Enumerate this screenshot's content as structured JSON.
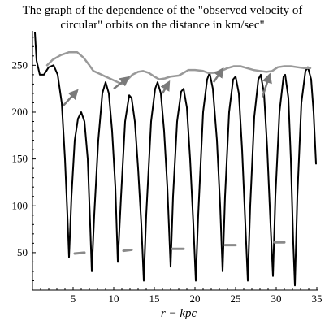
{
  "chart_data": {
    "type": "line",
    "title_lines": [
      "The graph of the dependence of the \"observed velocity of",
      "circular\" orbits on the distance in km/sec\""
    ],
    "xlabel": "r − kpc",
    "ylabel": "",
    "xlim": [
      0,
      36
    ],
    "ylim": [
      10,
      285
    ],
    "x_ticks": [
      5,
      10,
      15,
      20,
      25,
      30,
      35
    ],
    "y_ticks": [
      50,
      100,
      150,
      200,
      250
    ],
    "grid": false,
    "legend": "none",
    "series": [
      {
        "color": "#000000",
        "points": [
          [
            0.3,
            285
          ],
          [
            0.5,
            255
          ],
          [
            0.9,
            240
          ],
          [
            1.4,
            240
          ],
          [
            2.0,
            248
          ],
          [
            2.6,
            250
          ],
          [
            3.1,
            240
          ],
          [
            3.6,
            210
          ],
          [
            4.0,
            150
          ],
          [
            4.3,
            90
          ],
          [
            4.5,
            45
          ],
          [
            4.8,
            110
          ],
          [
            5.2,
            170
          ],
          [
            5.6,
            193
          ],
          [
            6.0,
            200
          ],
          [
            6.4,
            190
          ],
          [
            6.8,
            150
          ],
          [
            7.1,
            80
          ],
          [
            7.3,
            30
          ],
          [
            7.6,
            90
          ],
          [
            8.1,
            170
          ],
          [
            8.6,
            220
          ],
          [
            9.0,
            232
          ],
          [
            9.4,
            220
          ],
          [
            9.8,
            180
          ],
          [
            10.2,
            120
          ],
          [
            10.5,
            40
          ],
          [
            10.9,
            110
          ],
          [
            11.4,
            190
          ],
          [
            11.9,
            218
          ],
          [
            12.2,
            215
          ],
          [
            12.6,
            190
          ],
          [
            13.0,
            140
          ],
          [
            13.4,
            80
          ],
          [
            13.7,
            20
          ],
          [
            14.0,
            90
          ],
          [
            14.6,
            190
          ],
          [
            15.1,
            225
          ],
          [
            15.4,
            232
          ],
          [
            15.8,
            220
          ],
          [
            16.2,
            180
          ],
          [
            16.6,
            120
          ],
          [
            17.0,
            35
          ],
          [
            17.3,
            110
          ],
          [
            17.8,
            190
          ],
          [
            18.3,
            222
          ],
          [
            18.6,
            225
          ],
          [
            19.0,
            205
          ],
          [
            19.4,
            150
          ],
          [
            19.8,
            80
          ],
          [
            20.1,
            20
          ],
          [
            20.4,
            90
          ],
          [
            21.0,
            200
          ],
          [
            21.5,
            235
          ],
          [
            21.8,
            242
          ],
          [
            22.2,
            225
          ],
          [
            22.7,
            170
          ],
          [
            23.1,
            100
          ],
          [
            23.4,
            30
          ],
          [
            23.7,
            110
          ],
          [
            24.2,
            200
          ],
          [
            24.7,
            235
          ],
          [
            25.0,
            238
          ],
          [
            25.4,
            220
          ],
          [
            25.8,
            160
          ],
          [
            26.2,
            80
          ],
          [
            26.5,
            20
          ],
          [
            26.8,
            100
          ],
          [
            27.3,
            195
          ],
          [
            27.8,
            235
          ],
          [
            28.1,
            240
          ],
          [
            28.5,
            220
          ],
          [
            28.9,
            160
          ],
          [
            29.3,
            80
          ],
          [
            29.6,
            25
          ],
          [
            29.9,
            110
          ],
          [
            30.4,
            200
          ],
          [
            30.9,
            238
          ],
          [
            31.1,
            240
          ],
          [
            31.5,
            215
          ],
          [
            31.8,
            150
          ],
          [
            32.1,
            60
          ],
          [
            32.3,
            15
          ],
          [
            32.6,
            110
          ],
          [
            33.1,
            210
          ],
          [
            33.6,
            244
          ],
          [
            33.9,
            248
          ],
          [
            34.3,
            235
          ],
          [
            34.6,
            200
          ],
          [
            34.9,
            145
          ]
        ]
      },
      {
        "color": "#999999",
        "points": [
          [
            1.8,
            250
          ],
          [
            2.5,
            256
          ],
          [
            3.5,
            261
          ],
          [
            4.5,
            264
          ],
          [
            5.5,
            264
          ],
          [
            6.3,
            258
          ],
          [
            7.0,
            250
          ],
          [
            7.5,
            244
          ],
          [
            8.5,
            240
          ],
          [
            9.5,
            236
          ],
          [
            10.5,
            232
          ],
          [
            11.0,
            230
          ],
          [
            11.6,
            234
          ],
          [
            12.3,
            240
          ],
          [
            13.0,
            243
          ],
          [
            13.6,
            244
          ],
          [
            14.3,
            242
          ],
          [
            15.0,
            238
          ],
          [
            15.6,
            235
          ],
          [
            16.3,
            236
          ],
          [
            17.0,
            238
          ],
          [
            18.0,
            239
          ],
          [
            18.6,
            242
          ],
          [
            19.2,
            245
          ],
          [
            20.0,
            245
          ],
          [
            21.0,
            244
          ],
          [
            21.6,
            242
          ],
          [
            22.3,
            242
          ],
          [
            23.2,
            244
          ],
          [
            24.0,
            247
          ],
          [
            24.8,
            249
          ],
          [
            25.6,
            249
          ],
          [
            26.4,
            247
          ],
          [
            27.2,
            245
          ],
          [
            28.0,
            244
          ],
          [
            28.8,
            243
          ],
          [
            29.5,
            244
          ],
          [
            30.2,
            248
          ],
          [
            31.0,
            249
          ],
          [
            31.8,
            249
          ],
          [
            32.6,
            248
          ],
          [
            33.4,
            247
          ],
          [
            34.2,
            247
          ]
        ]
      }
    ],
    "short_marks": [
      {
        "x1": 5.2,
        "y1": 49,
        "x2": 6.4,
        "y2": 50
      },
      {
        "x1": 11.2,
        "y1": 52,
        "x2": 12.2,
        "y2": 53
      },
      {
        "x1": 17.2,
        "y1": 54,
        "x2": 18.6,
        "y2": 54
      },
      {
        "x1": 23.7,
        "y1": 58,
        "x2": 25.0,
        "y2": 58
      },
      {
        "x1": 29.8,
        "y1": 61,
        "x2": 31.0,
        "y2": 61
      }
    ],
    "arrows": [
      {
        "x1": 3.8,
        "y1": 207,
        "x2": 5.5,
        "y2": 223
      },
      {
        "x1": 10.0,
        "y1": 225,
        "x2": 11.8,
        "y2": 237
      },
      {
        "x1": 16.0,
        "y1": 220,
        "x2": 16.8,
        "y2": 232
      },
      {
        "x1": 22.3,
        "y1": 232,
        "x2": 23.4,
        "y2": 246
      },
      {
        "x1": 28.3,
        "y1": 216,
        "x2": 29.2,
        "y2": 240
      }
    ]
  }
}
